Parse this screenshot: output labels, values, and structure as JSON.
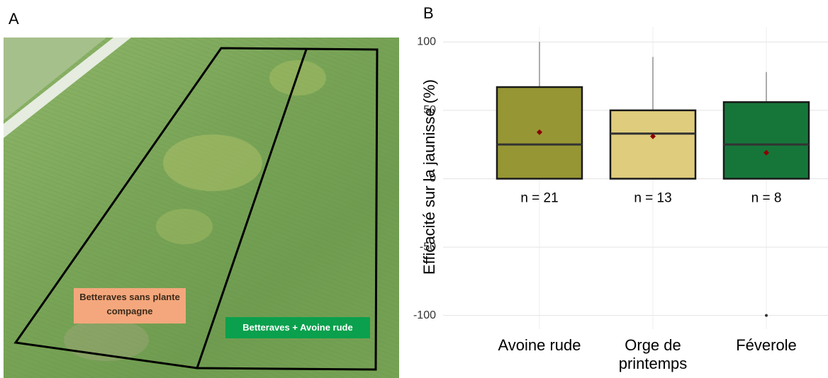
{
  "panel_labels": [
    "A",
    "B"
  ],
  "photo": {
    "labels": [
      "Betteraves sans plante compagne",
      "Betteraves + Avoine rude"
    ]
  },
  "chart_data": {
    "type": "box",
    "y_label": "Efficacité sur la jaunisse (%)",
    "categories": [
      "Avoine rude",
      "Orge de printemps",
      "Féverole"
    ],
    "boxes": [
      {
        "min": 0,
        "q1": 0,
        "median": 25,
        "q3": 67,
        "max": 100,
        "mean": 34,
        "n_label": "n = 21",
        "color": "#979634"
      },
      {
        "min": 0,
        "q1": 0,
        "median": 33,
        "q3": 50,
        "max": 89,
        "mean": 31,
        "n_label": "n = 13",
        "color": "#dfcc7c"
      },
      {
        "min": 0,
        "q1": 0,
        "median": 25,
        "q3": 56,
        "max": 78,
        "mean": 19,
        "n_label": "n = 8",
        "color": "#16763a",
        "outliers": [
          -100
        ]
      }
    ],
    "ylim": [
      -110,
      111
    ],
    "yticks": [
      -100,
      -50,
      0,
      50,
      100
    ],
    "grid": true
  }
}
